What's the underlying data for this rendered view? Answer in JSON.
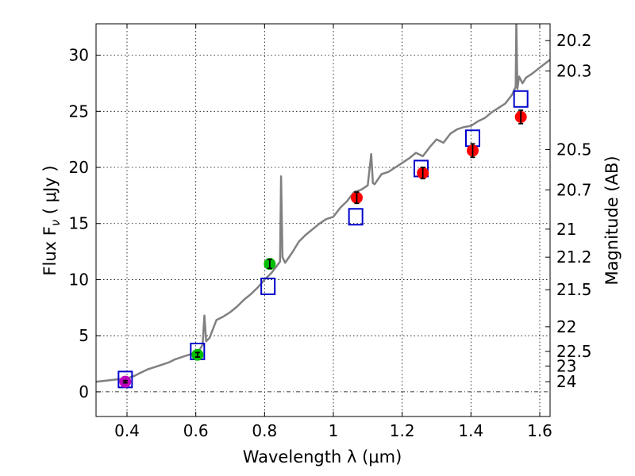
{
  "chart_data": {
    "type": "scatter",
    "title": "",
    "xlabel": "Wavelength  λ (μm)",
    "ylabel_left": "Flux  F",
    "ylabel_left_sub": "ν",
    "ylabel_left_units": "  ( μJy )",
    "ylabel_right": "Magnitude (AB)",
    "xlim": [
      0.31,
      1.63
    ],
    "ylim": [
      -2.2,
      32.8
    ],
    "grid": true,
    "legend": "none",
    "x_ticks": [
      {
        "value": 0.4,
        "label": "0.4"
      },
      {
        "value": 0.6,
        "label": "0.6"
      },
      {
        "value": 0.8,
        "label": "0.8"
      },
      {
        "value": 1.0,
        "label": "1"
      },
      {
        "value": 1.2,
        "label": "1.2"
      },
      {
        "value": 1.4,
        "label": "1.4"
      },
      {
        "value": 1.6,
        "label": "1.6"
      }
    ],
    "y_ticks": [
      {
        "value": 0,
        "label": "0"
      },
      {
        "value": 5,
        "label": "5"
      },
      {
        "value": 10,
        "label": "10"
      },
      {
        "value": 15,
        "label": "15"
      },
      {
        "value": 20,
        "label": "20"
      },
      {
        "value": 25,
        "label": "25"
      },
      {
        "value": 30,
        "label": "30"
      }
    ],
    "right_ticks": [
      {
        "flux": 31.3,
        "label": "20.2"
      },
      {
        "flux": 28.6,
        "label": "20.3"
      },
      {
        "flux": 21.6,
        "label": "20.5"
      },
      {
        "flux": 18.0,
        "label": "20.7"
      },
      {
        "flux": 14.5,
        "label": "21"
      },
      {
        "flux": 12.0,
        "label": "21.2"
      },
      {
        "flux": 9.1,
        "label": "21.5"
      },
      {
        "flux": 5.8,
        "label": "22"
      },
      {
        "flux": 3.6,
        "label": "22.5"
      },
      {
        "flux": 2.3,
        "label": "23"
      },
      {
        "flux": 0.9,
        "label": "24"
      }
    ],
    "series": [
      {
        "name": "spectrum",
        "kind": "line",
        "color": "#808080",
        "x": [
          0.31,
          0.34,
          0.37,
          0.4,
          0.42,
          0.44,
          0.46,
          0.48,
          0.5,
          0.52,
          0.54,
          0.56,
          0.58,
          0.6,
          0.61,
          0.62,
          0.625,
          0.63,
          0.64,
          0.65,
          0.66,
          0.68,
          0.7,
          0.72,
          0.74,
          0.76,
          0.78,
          0.8,
          0.82,
          0.835,
          0.845,
          0.848,
          0.852,
          0.86,
          0.88,
          0.9,
          0.92,
          0.94,
          0.96,
          0.98,
          1.0,
          1.02,
          1.04,
          1.06,
          1.08,
          1.1,
          1.11,
          1.115,
          1.12,
          1.14,
          1.16,
          1.18,
          1.2,
          1.22,
          1.24,
          1.26,
          1.28,
          1.3,
          1.32,
          1.34,
          1.36,
          1.38,
          1.4,
          1.42,
          1.44,
          1.46,
          1.48,
          1.5,
          1.52,
          1.53,
          1.532,
          1.535,
          1.54,
          1.55,
          1.56,
          1.58,
          1.6,
          1.63
        ],
        "y": [
          0.9,
          1.0,
          1.1,
          1.2,
          1.4,
          1.7,
          2.0,
          2.2,
          2.4,
          2.6,
          2.9,
          3.1,
          3.3,
          3.5,
          3.7,
          4.2,
          6.8,
          4.5,
          4.8,
          5.6,
          6.4,
          6.7,
          7.1,
          7.6,
          8.2,
          8.7,
          9.3,
          10.0,
          10.6,
          11.2,
          11.6,
          19.2,
          12.0,
          11.5,
          12.4,
          13.4,
          14.0,
          14.5,
          15.0,
          15.4,
          15.6,
          16.4,
          17.0,
          17.8,
          18.0,
          18.4,
          21.2,
          18.6,
          18.5,
          19.4,
          19.6,
          20.0,
          20.4,
          20.8,
          21.3,
          21.0,
          21.8,
          22.5,
          22.2,
          23.0,
          23.4,
          23.6,
          23.7,
          24.1,
          24.4,
          24.9,
          25.3,
          25.7,
          26.5,
          27.2,
          33.0,
          27.0,
          28.1,
          27.5,
          28.0,
          28.4,
          28.9,
          29.6
        ]
      },
      {
        "name": "model-boxes",
        "kind": "square",
        "color": "#0000cc",
        "x": [
          0.395,
          0.605,
          0.81,
          1.065,
          1.255,
          1.405,
          1.545
        ],
        "y": [
          1.1,
          3.6,
          9.4,
          15.6,
          19.9,
          22.6,
          26.1
        ]
      },
      {
        "name": "magenta-points",
        "kind": "circle",
        "color": "#bf00bf",
        "x": [
          0.395
        ],
        "y": [
          0.9
        ],
        "yerr": [
          0.1
        ]
      },
      {
        "name": "green-points",
        "kind": "circle",
        "color": "#00bf00",
        "x": [
          0.605,
          0.815
        ],
        "y": [
          3.3,
          11.4
        ],
        "yerr": [
          0.2,
          0.4
        ]
      },
      {
        "name": "red-points",
        "kind": "circle",
        "color": "#ff0000",
        "x": [
          1.068,
          1.26,
          1.405,
          1.545
        ],
        "y": [
          17.3,
          19.5,
          21.5,
          24.5
        ],
        "yerr": [
          0.5,
          0.5,
          0.6,
          0.6
        ]
      }
    ]
  }
}
